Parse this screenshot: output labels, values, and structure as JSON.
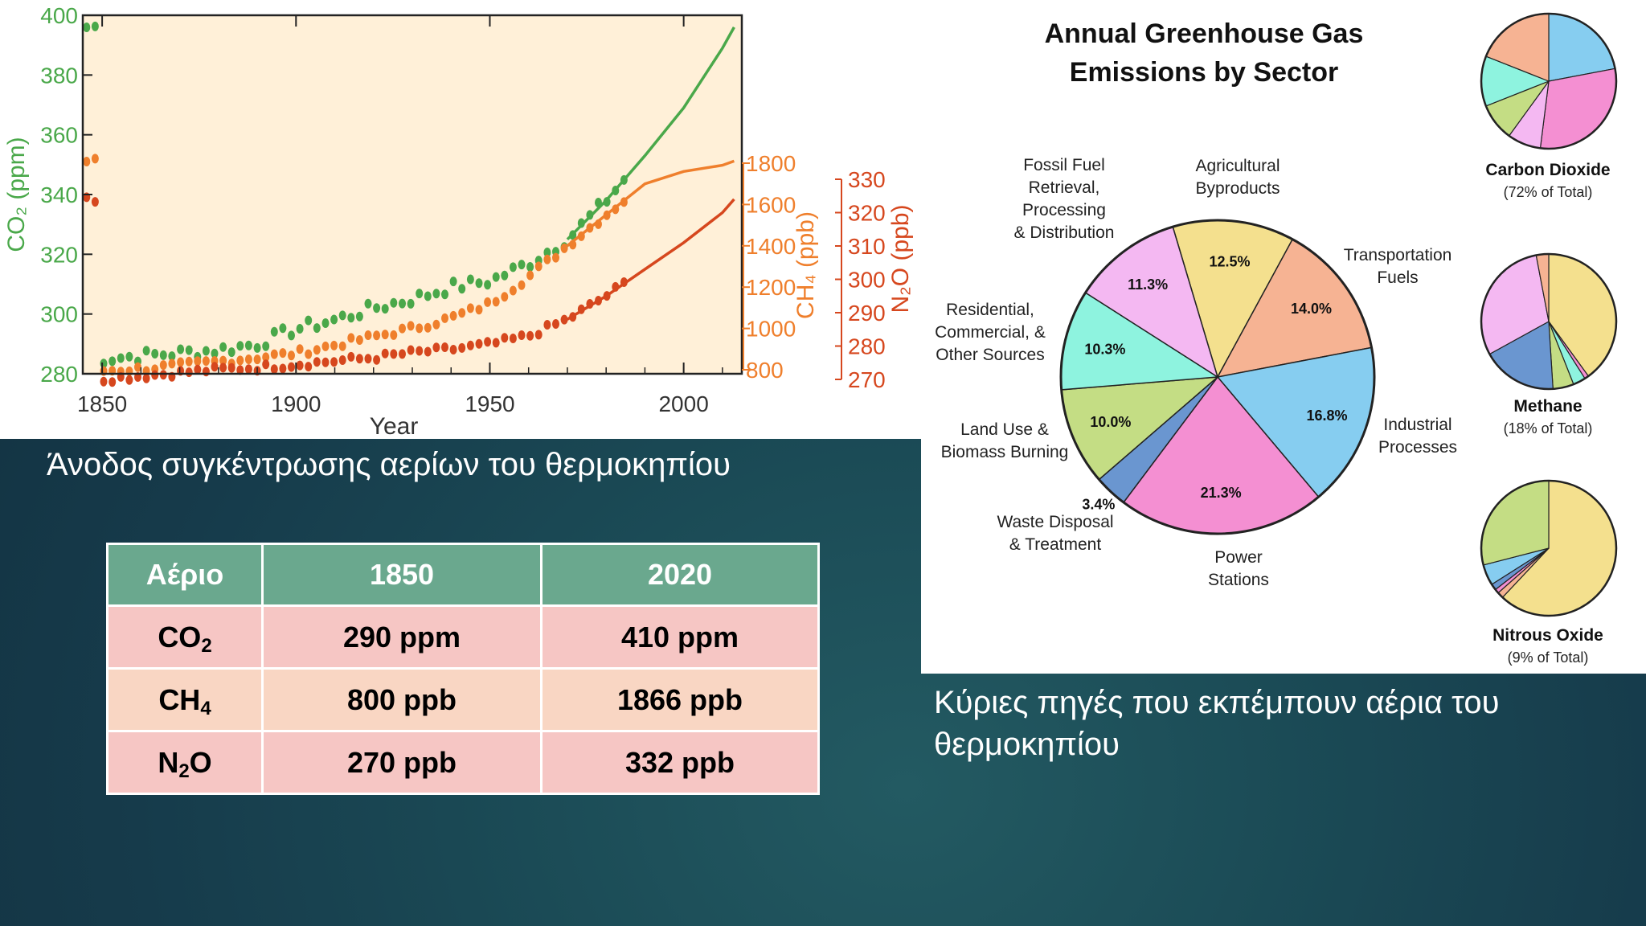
{
  "captions": {
    "left": "Άνοδος συγκέντρωσης αερίων του θερμοκηπίου",
    "right": "Κύριες πηγές που εκπέμπουν αέρια του θερμοκηπίου"
  },
  "table": {
    "headers": [
      "Αέριο",
      "1850",
      "2020"
    ],
    "rows": [
      {
        "gas_base": "CO",
        "gas_sub": "2",
        "gas_tail": "",
        "v1850": "290 ppm",
        "v2020": "410 ppm"
      },
      {
        "gas_base": "CH",
        "gas_sub": "4",
        "gas_tail": "",
        "v1850": "800 ppb",
        "v2020": "1866 ppb"
      },
      {
        "gas_base": "N",
        "gas_sub": "2",
        "gas_tail": "O",
        "v1850": "270 ppb",
        "v2020": "332 ppb"
      }
    ]
  },
  "colors": {
    "co2": "#4aa84a",
    "ch4": "#ef7f2c",
    "n2o": "#d6471e",
    "plot_bg": "#fff0d8"
  },
  "chart_data": [
    {
      "type": "line",
      "title": "",
      "xlabel": "Year",
      "xlim": [
        1845,
        2015
      ],
      "xticks": [
        "1850",
        "1900",
        "1950",
        "2000"
      ],
      "axes": [
        {
          "name": "CO2",
          "label": "CO₂ (ppm)",
          "ylim": [
            280,
            400
          ],
          "ticks": [
            "280",
            "300",
            "320",
            "340",
            "360",
            "380",
            "400"
          ]
        },
        {
          "name": "CH4",
          "label": "CH₄ (ppb)",
          "ylim": [
            800,
            1800
          ],
          "ticks": [
            "800",
            "1000",
            "1200",
            "1400",
            "1600",
            "1800"
          ]
        },
        {
          "name": "N2O",
          "label": "N₂O (ppb)",
          "ylim": [
            270,
            330
          ],
          "ticks": [
            "270",
            "280",
            "290",
            "300",
            "310",
            "320",
            "330"
          ]
        }
      ],
      "series": [
        {
          "name": "CO2",
          "axis": "CO2",
          "x": [
            1850,
            1860,
            1870,
            1880,
            1890,
            1900,
            1910,
            1920,
            1930,
            1940,
            1950,
            1960,
            1970,
            1980,
            1990,
            2000,
            2010,
            2013
          ],
          "values": [
            285,
            286,
            287,
            288,
            290,
            295,
            298,
            302,
            305,
            309,
            311,
            317,
            325,
            338,
            353,
            369,
            389,
            396
          ]
        },
        {
          "name": "CH4",
          "axis": "CH4",
          "x": [
            1850,
            1860,
            1870,
            1880,
            1890,
            1900,
            1910,
            1920,
            1930,
            1940,
            1950,
            1960,
            1970,
            1980,
            1990,
            2000,
            2010,
            2013
          ],
          "values": [
            795,
            805,
            820,
            840,
            860,
            880,
            920,
            960,
            1000,
            1050,
            1120,
            1250,
            1400,
            1550,
            1700,
            1760,
            1790,
            1810
          ]
        },
        {
          "name": "N2O",
          "axis": "N2O",
          "x": [
            1850,
            1860,
            1870,
            1880,
            1890,
            1900,
            1910,
            1920,
            1930,
            1940,
            1950,
            1960,
            1970,
            1980,
            1990,
            2000,
            2010,
            2013
          ],
          "values": [
            270,
            271,
            272,
            273,
            273.5,
            274.5,
            275.5,
            276.5,
            278,
            279,
            280.5,
            283,
            288,
            295,
            303,
            311,
            320,
            324
          ]
        }
      ]
    },
    {
      "type": "pie",
      "title": "Annual Greenhouse Gas Emissions by Sector",
      "slices": [
        {
          "label": "Agricultural Byproducts",
          "value": 12.5,
          "text": "12.5%",
          "color": "#f4e08e"
        },
        {
          "label": "Transportation Fuels",
          "value": 14.0,
          "text": "14.0%",
          "color": "#f6b393"
        },
        {
          "label": "Industrial Processes",
          "value": 16.8,
          "text": "16.8%",
          "color": "#86cdf0"
        },
        {
          "label": "Power Stations",
          "value": 21.3,
          "text": "21.3%",
          "color": "#f48fd2"
        },
        {
          "label": "Waste Disposal & Treatment",
          "value": 3.4,
          "text": "3.4%",
          "color": "#6a96d0"
        },
        {
          "label": "Land Use & Biomass Burning",
          "value": 10.0,
          "text": "10.0%",
          "color": "#c4dd84"
        },
        {
          "label": "Residential, Commercial, & Other Sources",
          "value": 10.3,
          "text": "10.3%",
          "color": "#8ef3df"
        },
        {
          "label": "Fossil Fuel Retrieval, Processing & Distribution",
          "value": 11.3,
          "text": "11.3%",
          "color": "#f4b8f2"
        }
      ],
      "sub_pies": [
        {
          "name": "Carbon Dioxide",
          "note": "(72% of Total)",
          "values": [
            {
              "sector": "Industrial Processes",
              "value": 22
            },
            {
              "sector": "Power Stations",
              "value": 30
            },
            {
              "sector": "Fossil Fuel Retrieval",
              "value": 8
            },
            {
              "sector": "Land Use & Biomass Burning",
              "value": 9
            },
            {
              "sector": "Residential, Commercial, & Other",
              "value": 12
            },
            {
              "sector": "Transportation Fuels",
              "value": 19
            }
          ]
        },
        {
          "name": "Methane",
          "note": "(18% of Total)",
          "values": [
            {
              "sector": "Agricultural Byproducts",
              "value": 40
            },
            {
              "sector": "Power Stations",
              "value": 1
            },
            {
              "sector": "Residential, Commercial, & Other",
              "value": 3
            },
            {
              "sector": "Land Use & Biomass Burning",
              "value": 5
            },
            {
              "sector": "Waste Disposal & Treatment",
              "value": 18
            },
            {
              "sector": "Fossil Fuel Retrieval",
              "value": 30
            },
            {
              "sector": "Transportation Fuels",
              "value": 3
            }
          ]
        },
        {
          "name": "Nitrous Oxide",
          "note": "(9% of Total)",
          "values": [
            {
              "sector": "Agricultural Byproducts",
              "value": 62
            },
            {
              "sector": "Transportation Fuels",
              "value": 1.5
            },
            {
              "sector": "Power Stations",
              "value": 1
            },
            {
              "sector": "Waste Disposal & Treatment",
              "value": 1.5
            },
            {
              "sector": "Industrial Processes",
              "value": 5
            },
            {
              "sector": "Land Use & Biomass Burning",
              "value": 29
            }
          ]
        }
      ]
    }
  ]
}
